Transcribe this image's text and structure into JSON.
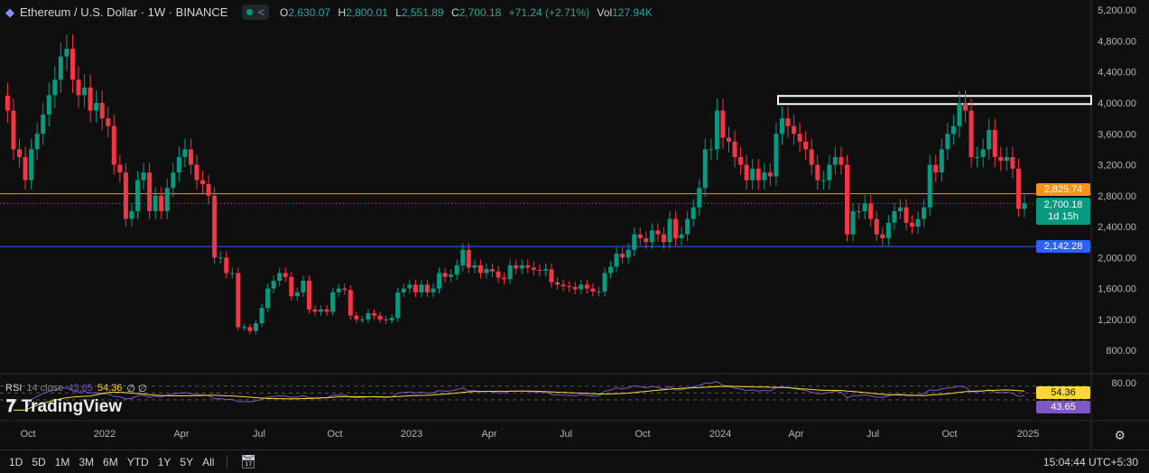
{
  "header": {
    "symbol": "Ethereum / U.S. Dollar · 1W · BINANCE",
    "o_label": "O",
    "open": "2,630.07",
    "h_label": "H",
    "high": "2,800.01",
    "l_label": "L",
    "low": "2,551.89",
    "c_label": "C",
    "close": "2,700.18",
    "change": "+71.24 (+2.71%)",
    "vol_label": "Vol",
    "volume": "127.94K"
  },
  "price_axis": [
    "5,200.00",
    "4,800.00",
    "4,400.00",
    "4,000.00",
    "3,600.00",
    "3,200.00",
    "2,800.00",
    "2,400.00",
    "2,000.00",
    "1,600.00",
    "1,200.00",
    "800.00"
  ],
  "price_ticks": [
    5200,
    4800,
    4400,
    4000,
    3600,
    3200,
    2800,
    2400,
    2000,
    1600,
    1200,
    800
  ],
  "tags": {
    "resistance": "2,825.74",
    "last": "2,700.18",
    "countdown": "1d 15h",
    "support": "2,142.28"
  },
  "levels": {
    "resistance": 2825.74,
    "last": 2700.18,
    "support": 2142.28,
    "zone": [
      3985,
      4090
    ]
  },
  "colors": {
    "up": "#089981",
    "down": "#f23645",
    "resistance": "#f7931a",
    "support": "#2962ff",
    "rsi": "#7e57c2",
    "rsi_ma": "#fdd835"
  },
  "time_axis": [
    "Oct",
    "2022",
    "Apr",
    "Jul",
    "Oct",
    "2023",
    "Apr",
    "Jul",
    "Oct",
    "2024",
    "Apr",
    "Jul",
    "Oct",
    "2025"
  ],
  "rsi": {
    "label": "RSI",
    "params": "14 close",
    "value": "43.65",
    "ma_value": "54.36",
    "extra": "∅ ∅",
    "axis_top": "80.00"
  },
  "branding": "TradingView",
  "ranges": [
    "1D",
    "5D",
    "1M",
    "3M",
    "6M",
    "YTD",
    "1Y",
    "5Y",
    "All"
  ],
  "clock": "15:04:44 UTC+5:30",
  "chart_data": {
    "type": "candlestick",
    "interval": "1W",
    "ylim": [
      700,
      5300
    ],
    "closes": [
      3900,
      3400,
      3300,
      3000,
      3400,
      3600,
      3850,
      4100,
      4300,
      4600,
      4700,
      4300,
      4100,
      4200,
      3900,
      4000,
      3800,
      3700,
      3200,
      3100,
      2500,
      2600,
      3000,
      3100,
      2600,
      2800,
      2600,
      2900,
      3100,
      3300,
      3400,
      3200,
      3000,
      2950,
      2800,
      2000,
      2000,
      1800,
      1800,
      1100,
      1100,
      1050,
      1150,
      1350,
      1600,
      1700,
      1800,
      1750,
      1500,
      1550,
      1700,
      1330,
      1300,
      1330,
      1300,
      1550,
      1600,
      1580,
      1250,
      1200,
      1200,
      1280,
      1250,
      1200,
      1190,
      1220,
      1550,
      1600,
      1650,
      1550,
      1650,
      1550,
      1600,
      1800,
      1750,
      1780,
      1900,
      2100,
      1870,
      1900,
      1800,
      1850,
      1820,
      1740,
      1720,
      1900,
      1860,
      1900,
      1870,
      1840,
      1830,
      1850,
      1680,
      1650,
      1630,
      1620,
      1590,
      1650,
      1600,
      1560,
      1560,
      1800,
      1880,
      2050,
      2000,
      2100,
      2300,
      2250,
      2200,
      2350,
      2300,
      2200,
      2500,
      2250,
      2300,
      2500,
      2650,
      2900,
      3400,
      3400,
      3900,
      3550,
      3500,
      3300,
      3200,
      3000,
      3150,
      3000,
      3100,
      3050,
      3600,
      3800,
      3700,
      3600,
      3500,
      3400,
      3200,
      3000,
      3000,
      3200,
      3300,
      3200,
      2300,
      2600,
      2600,
      2700,
      2500,
      2300,
      2250,
      2450,
      2600,
      2650,
      2450,
      2400,
      2500,
      2650,
      3200,
      3100,
      3400,
      3600,
      3700,
      4000,
      3900,
      3300,
      3300,
      3400,
      3650,
      3300,
      3250,
      3300,
      3150,
      2630,
      2700.18
    ]
  }
}
